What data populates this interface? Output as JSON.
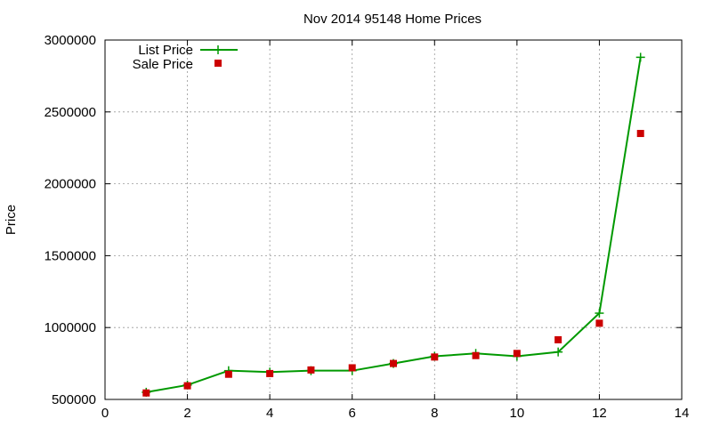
{
  "chart_data": {
    "type": "line",
    "title": "Nov 2014 95148 Home Prices",
    "xlabel": "",
    "ylabel": "Price",
    "xlim": [
      0,
      14
    ],
    "ylim": [
      500000,
      3000000
    ],
    "xticks": [
      0,
      2,
      4,
      6,
      8,
      10,
      12,
      14
    ],
    "yticks": [
      500000,
      1000000,
      1500000,
      2000000,
      2500000,
      3000000
    ],
    "xtick_labels": [
      "0",
      "2",
      "4",
      "6",
      "8",
      "10",
      "12",
      "14"
    ],
    "ytick_labels": [
      "500000",
      "1000000",
      "1500000",
      "2000000",
      "2500000",
      "3000000"
    ],
    "grid": true,
    "legend_position": "top-left",
    "series": [
      {
        "name": "List Price",
        "style": "line-with-plus-markers",
        "color": "#009900",
        "x": [
          1,
          2,
          3,
          4,
          5,
          6,
          7,
          8,
          9,
          10,
          11,
          12,
          13
        ],
        "y": [
          550000,
          600000,
          700000,
          690000,
          700000,
          700000,
          750000,
          800000,
          820000,
          800000,
          830000,
          1100000,
          2880000
        ]
      },
      {
        "name": "Sale Price",
        "style": "square-markers",
        "color": "#cc0000",
        "x": [
          1,
          2,
          3,
          4,
          5,
          6,
          7,
          8,
          9,
          10,
          11,
          12,
          13
        ],
        "y": [
          545000,
          595000,
          675000,
          680000,
          705000,
          720000,
          750000,
          795000,
          805000,
          820000,
          915000,
          1030000,
          2350000
        ]
      }
    ]
  }
}
